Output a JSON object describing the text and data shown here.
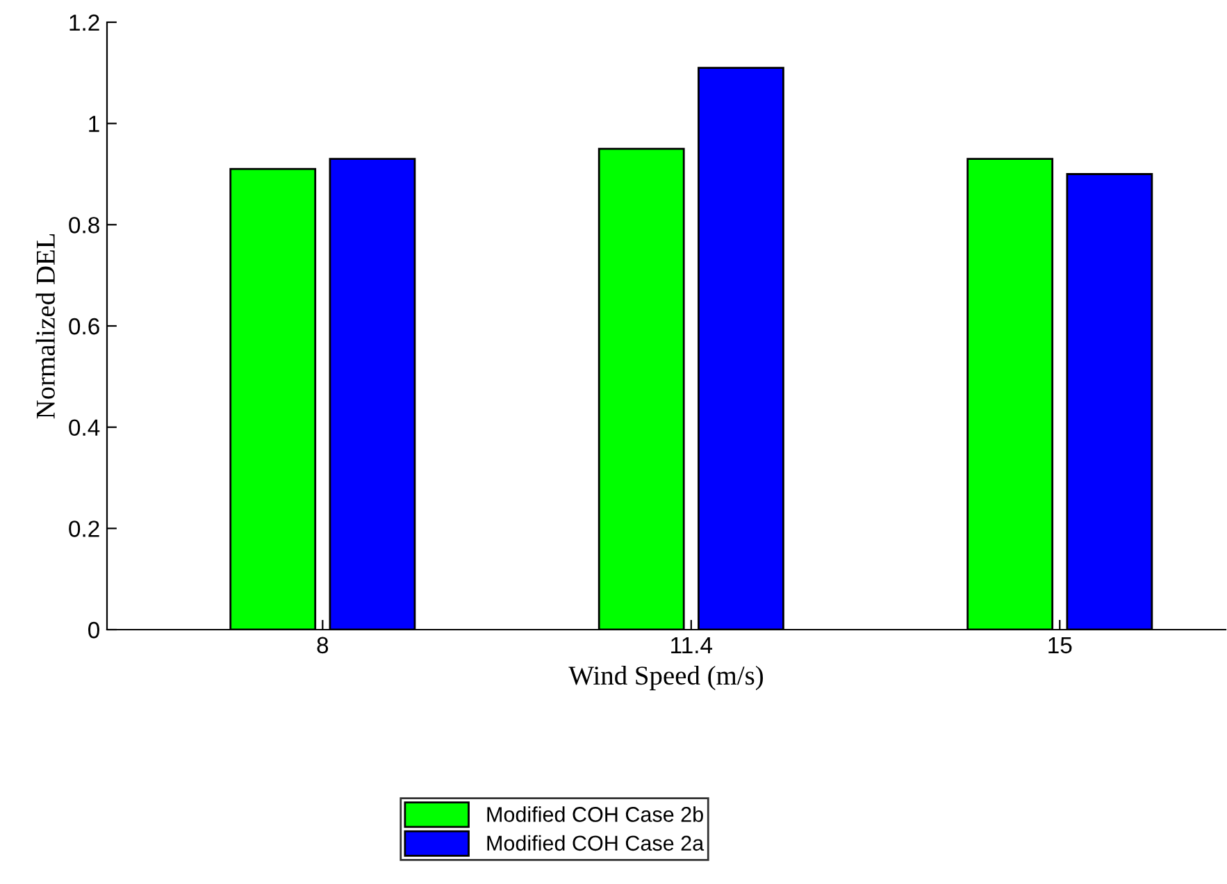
{
  "chart_data": {
    "type": "bar",
    "xlabel": "Wind Speed (m/s)",
    "ylabel": "Normalized DEL",
    "categories": [
      "8",
      "11.4",
      "15"
    ],
    "series": [
      {
        "name": "Modified COH Case 2b",
        "color": "#00ff00",
        "values": [
          0.91,
          0.95,
          0.93
        ]
      },
      {
        "name": "Modified COH Case 2a",
        "color": "#0000ff",
        "values": [
          0.93,
          1.11,
          0.9
        ]
      }
    ],
    "ylim": [
      0,
      1.2
    ],
    "yticks": [
      0,
      0.2,
      0.4,
      0.6,
      0.8,
      1,
      1.2
    ],
    "grid": false,
    "legend": "bottom"
  }
}
